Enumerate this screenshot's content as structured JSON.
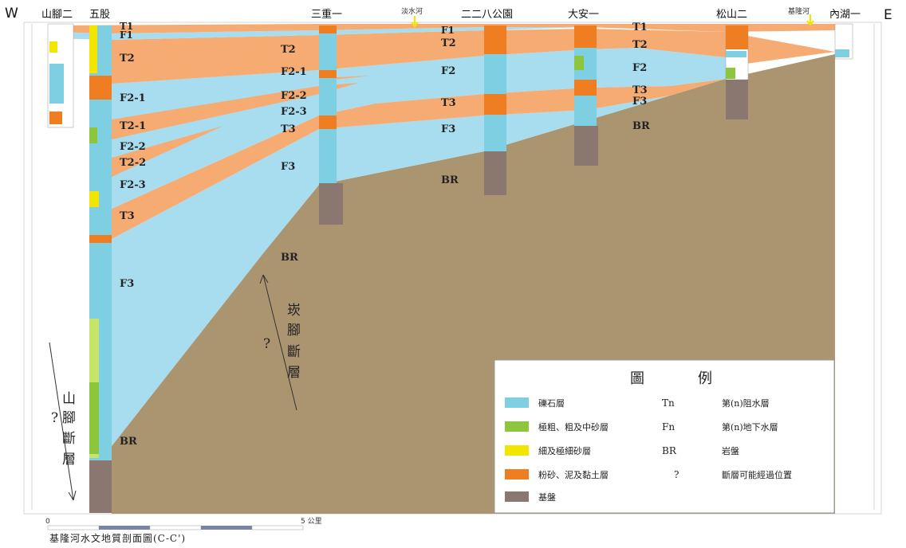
{
  "header": {
    "west": "W",
    "east": "E",
    "wells": [
      "山腳二",
      "五股",
      "三重一",
      "二二八公園",
      "大安一",
      "松山二",
      "內湖一"
    ],
    "rivers": [
      "淡水河",
      "基隆河"
    ]
  },
  "layer_labels": {
    "west": [
      "T1",
      "F1",
      "T2",
      "F2-1",
      "T2-1",
      "F2-2",
      "T2-2",
      "F2-3",
      "T3",
      "F3",
      "BR"
    ],
    "sanchong": [
      "T2",
      "F2-1",
      "F2-2",
      "F2-3",
      "T3",
      "F3",
      "BR"
    ],
    "park": [
      "F1",
      "T2",
      "F2",
      "T3",
      "F3",
      "BR"
    ],
    "east": [
      "T1",
      "T2",
      "F2",
      "T3",
      "F3",
      "BR"
    ]
  },
  "faults": {
    "kan_jiao": "崁腳斷層",
    "shan_jiao": "山腳斷層",
    "question": "?"
  },
  "legend": {
    "title_left": "圖",
    "title_right": "例",
    "items": [
      {
        "color": "#7fcfe3",
        "label": "礫石層",
        "symbol": "Tn",
        "meaning": "第(n)阻水層"
      },
      {
        "color": "#8cc63f",
        "label": "極粗、粗及中砂層",
        "symbol": "Fn",
        "meaning": "第(n)地下水層"
      },
      {
        "color": "#f2e600",
        "label": "細及極細砂層",
        "symbol": "BR",
        "meaning": "岩盤"
      },
      {
        "color": "#ef7d22",
        "label": "粉砂、泥及黏土層",
        "symbol": "?",
        "meaning": "斷層可能經過位置"
      },
      {
        "color": "#8a7770",
        "label": "基盤",
        "symbol": "",
        "meaning": ""
      }
    ]
  },
  "scale": {
    "zero": "0",
    "end": "5 公里"
  },
  "caption": "基隆河水文地質剖面圖(C-C')",
  "colors": {
    "aquitard": "#f6ab72",
    "aquifer": "#a8dcef",
    "bedrock": "#ab9470",
    "gravel": "#7fcfe3",
    "sand_coarse": "#8cc63f",
    "sand_fine": "#f2e600",
    "mud": "#ef7d22",
    "basement": "#8a7770"
  }
}
